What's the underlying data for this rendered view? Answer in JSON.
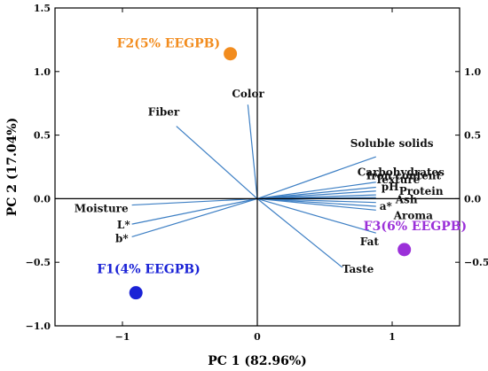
{
  "chart_data": {
    "type": "scatter",
    "subtype": "pca-biplot",
    "xlabel": "PC 1 (82.96%)",
    "ylabel": "PC 2 (17.04%)",
    "xlim": [
      -1.5,
      1.5
    ],
    "ylim": [
      -1.0,
      1.5
    ],
    "x_ticks": [
      -1,
      0,
      1
    ],
    "x_tick_labels": [
      "−1",
      "0",
      "1"
    ],
    "y_ticks_left": [
      -1.0,
      -0.5,
      0.0,
      0.5,
      1.0,
      1.5
    ],
    "y_tick_labels_left": [
      "−1.0",
      "−0.5",
      "0.0",
      "0.5",
      "1.0",
      "1.5"
    ],
    "y_ticks_right": [
      -0.5,
      0.0,
      0.5,
      1.0
    ],
    "y_tick_labels_right": [
      "−0.5",
      "0.0",
      "0.5",
      "1.0"
    ],
    "grid": false,
    "samples": [
      {
        "label": "F2(5% EEGPB)",
        "x": -0.2,
        "y": 1.14,
        "color": "#f28c1e"
      },
      {
        "label": "F1(4% EEGPB)",
        "x": -0.9,
        "y": -0.74,
        "color": "#1a22d6"
      },
      {
        "label": "F3(6% EEGPB)",
        "x": 1.09,
        "y": -0.4,
        "color": "#9b30d9"
      }
    ],
    "variables": [
      {
        "name": "Color",
        "x": -0.07,
        "y": 0.74
      },
      {
        "name": "Fiber",
        "x": -0.6,
        "y": 0.57
      },
      {
        "name": "Soluble solids",
        "x": 0.88,
        "y": 0.33
      },
      {
        "name": "Carbohydrates",
        "x": 0.88,
        "y": 0.13
      },
      {
        "name": "Iron content",
        "x": 0.88,
        "y": 0.09
      },
      {
        "name": "Texture",
        "x": 0.88,
        "y": 0.06
      },
      {
        "name": "pH",
        "x": 0.88,
        "y": 0.03
      },
      {
        "name": "Protein",
        "x": 0.88,
        "y": 0.01
      },
      {
        "name": "Ash",
        "x": 0.88,
        "y": -0.03
      },
      {
        "name": "a*",
        "x": 0.88,
        "y": -0.06
      },
      {
        "name": "Aroma",
        "x": 0.88,
        "y": -0.09
      },
      {
        "name": "Fat",
        "x": 0.88,
        "y": -0.27
      },
      {
        "name": "Taste",
        "x": 0.63,
        "y": -0.54
      },
      {
        "name": "Moisture",
        "x": -0.93,
        "y": -0.05
      },
      {
        "name": "L*",
        "x": -0.93,
        "y": -0.2
      },
      {
        "name": "b*",
        "x": -0.93,
        "y": -0.3
      }
    ]
  }
}
